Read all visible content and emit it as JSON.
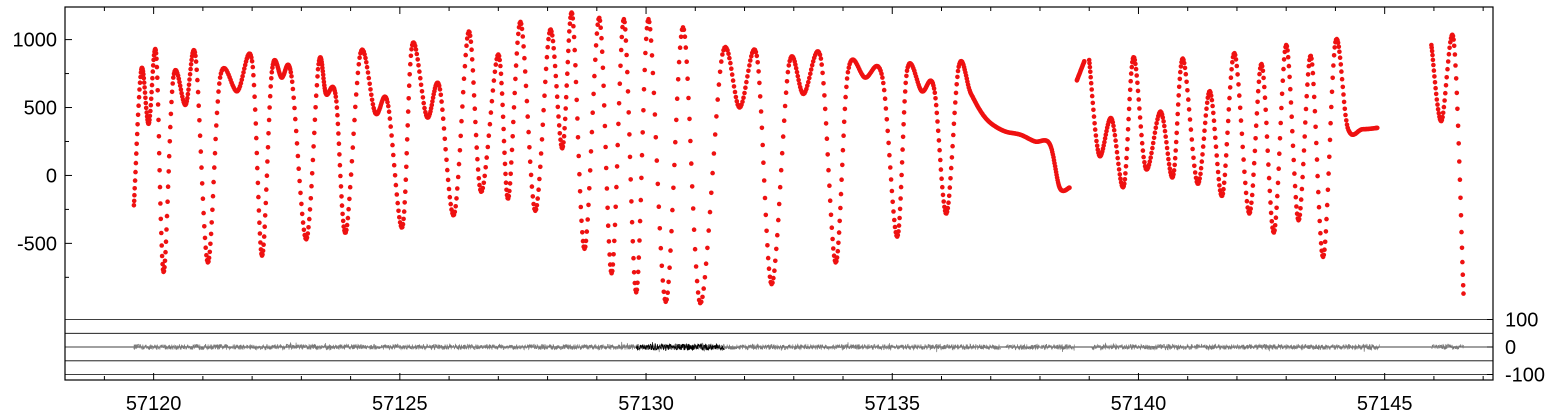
{
  "chart_data": [
    {
      "type": "scatter",
      "title": "",
      "xlabel": "",
      "ylabel": "",
      "xlim": [
        57118.2,
        57147.2
      ],
      "ylim": [
        -1020,
        1240
      ],
      "x_ticks": [
        "57120",
        "57125",
        "57130",
        "57135",
        "57140",
        "57145"
      ],
      "y_ticks": [
        "1000",
        "500",
        "0",
        "-500"
      ],
      "y_tick_values": [
        1000,
        500,
        0,
        -500
      ],
      "x_tick_values": [
        57120,
        57125,
        57130,
        57135,
        57140,
        57145
      ],
      "series_color": "#ee1111",
      "series": [
        {
          "x": [
            57119.6,
            57119.75,
            57119.9,
            57120.05,
            57120.2,
            57120.4,
            57120.65,
            57120.85,
            57121.1,
            57121.35,
            57121.7,
            57122.0,
            57122.2,
            57122.4,
            57122.6,
            57122.8,
            57123.1,
            57123.35,
            57123.5,
            57123.7,
            57123.9,
            57124.2,
            57124.5,
            57124.75,
            57125.05,
            57125.25,
            57125.55,
            57125.8,
            57126.1,
            57126.4,
            57126.65,
            57127.0,
            57127.2,
            57127.45,
            57127.75,
            57128.05,
            57128.3,
            57128.5,
            57128.75,
            57129.05,
            57129.3,
            57129.55,
            57129.8,
            57130.05,
            57130.4,
            57130.75,
            57131.1,
            57131.55,
            57131.9,
            57132.25,
            57132.55,
            57132.9,
            57133.2,
            57133.55,
            57133.85,
            57134.1,
            57134.45,
            57134.8,
            57135.1,
            57135.3,
            57135.6,
            57135.85,
            57136.1,
            57136.35,
            57136.6,
            57136.9,
            57137.25,
            57137.6,
            57137.9,
            57138.2,
            57138.4,
            57138.6,
            57138.75,
            57138.9
          ],
          "y": [
            -220,
            780,
            380,
            900,
            -710,
            720,
            520,
            880,
            -640,
            720,
            620,
            840,
            -590,
            760,
            720,
            730,
            -470,
            820,
            600,
            580,
            -420,
            900,
            460,
            540,
            -380,
            960,
            430,
            660,
            -290,
            1060,
            -120,
            890,
            -170,
            1130,
            -260,
            1070,
            200,
            1190,
            -540,
            1160,
            -720,
            1150,
            -860,
            1150,
            -930,
            1090,
            -940,
            890,
            500,
            880,
            -800,
            810,
            600,
            860,
            -640,
            760,
            720,
            720,
            -450,
            770,
            620,
            640,
            -280,
            800,
            600,
            420,
            330,
            300,
            250,
            230,
            -90,
            -90,
            700,
            840
          ],
          "gaps_after_index": [
            71
          ]
        },
        {
          "x": [
            57139.0,
            57139.2,
            57139.45,
            57139.7,
            57139.9,
            57140.15,
            57140.45,
            57140.7,
            57140.9,
            57141.2,
            57141.45,
            57141.7,
            57141.95,
            57142.25,
            57142.5,
            57142.75,
            57143.0,
            57143.25,
            57143.5,
            57143.75,
            57144.0,
            57144.25,
            57144.55,
            57144.85
          ],
          "y": [
            850,
            150,
            420,
            -80,
            870,
            50,
            470,
            -10,
            860,
            -60,
            620,
            -150,
            900,
            -280,
            820,
            -420,
            960,
            -330,
            880,
            -600,
            980,
            350,
            340,
            350
          ]
        },
        {
          "x": [
            57145.95,
            57146.15,
            57146.4,
            57146.6
          ],
          "y": [
            960,
            400,
            1000,
            -870
          ]
        }
      ]
    },
    {
      "type": "line",
      "title": "",
      "xlabel": "",
      "ylabel": "",
      "xlim": [
        57118.2,
        57147.2
      ],
      "ylim": [
        -120,
        120
      ],
      "y_ticks": [
        "100",
        "0",
        "-100"
      ],
      "y_tick_values": [
        100,
        0,
        -100
      ],
      "grid_lines_at": [
        100,
        50,
        0,
        -50,
        -100
      ],
      "series": [
        {
          "name": "",
          "color": "#7a7a7a",
          "x_start": 57119.6,
          "x_end": 57144.9,
          "gaps": [
            [
              57137.2,
              57137.3
            ],
            [
              57138.7,
              57139.05
            ]
          ],
          "amplitude": 10
        },
        {
          "name": "",
          "color": "#000000",
          "x_start": 57129.8,
          "x_end": 57131.6,
          "amplitude": 12
        },
        {
          "name": "",
          "color": "#7a7a7a",
          "x_start": 57145.95,
          "x_end": 57146.6,
          "amplitude": 10
        }
      ]
    }
  ]
}
